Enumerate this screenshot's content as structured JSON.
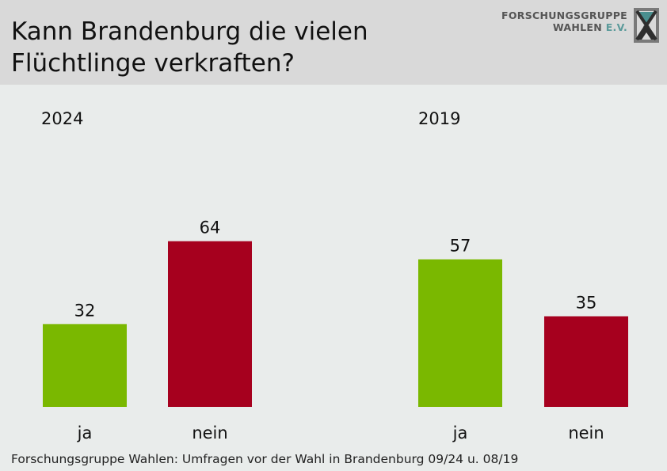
{
  "header": {
    "title_line1": "Kann Brandenburg die vielen",
    "title_line2": "Flüchtlinge verkraften?"
  },
  "logo": {
    "line1": "FORSCHUNGSGRUPPE",
    "line2_a": "WAHLEN ",
    "line2_b": "E.V."
  },
  "footer": {
    "source": "Forschungsgruppe Wahlen: Umfragen vor der Wahl in Brandenburg 09/24 u. 08/19"
  },
  "colors": {
    "ja": "#7ab800",
    "nein": "#a6001e",
    "background": "#e9eceb",
    "header": "#d9d9d9"
  },
  "chart_data": [
    {
      "type": "bar",
      "title": "2024",
      "categories": [
        "ja",
        "nein"
      ],
      "values": [
        32,
        64
      ],
      "ylim": [
        0,
        100
      ]
    },
    {
      "type": "bar",
      "title": "2019",
      "categories": [
        "ja",
        "nein"
      ],
      "values": [
        57,
        35
      ],
      "ylim": [
        0,
        100
      ]
    }
  ]
}
